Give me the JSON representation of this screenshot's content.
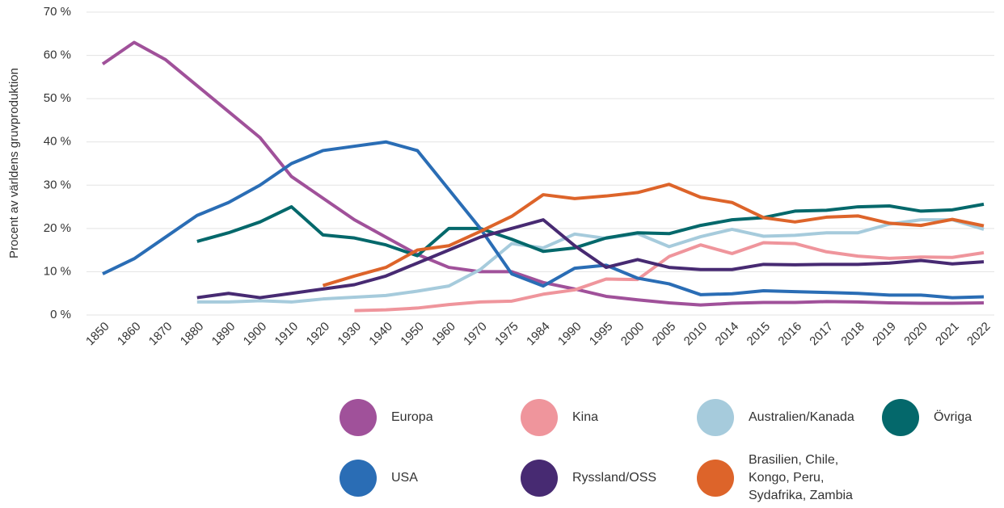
{
  "chart_data": {
    "type": "line",
    "ylabel": "Procent av världens gruvproduktion",
    "categories": [
      "1850",
      "1860",
      "1870",
      "1880",
      "1890",
      "1900",
      "1910",
      "1920",
      "1930",
      "1940",
      "1950",
      "1960",
      "1970",
      "1975",
      "1984",
      "1990",
      "1995",
      "2000",
      "2005",
      "2010",
      "2014",
      "2015",
      "2016",
      "2017",
      "2018",
      "2019",
      "2020",
      "2021",
      "2022"
    ],
    "ylim": [
      0,
      70
    ],
    "yticks": [
      {
        "value": 0,
        "label": "0 %"
      },
      {
        "value": 10,
        "label": "10 %"
      },
      {
        "value": 20,
        "label": "20 %"
      },
      {
        "value": 30,
        "label": "30 %"
      },
      {
        "value": 40,
        "label": "40 %"
      },
      {
        "value": 50,
        "label": "50 %"
      },
      {
        "value": 60,
        "label": "60 %"
      },
      {
        "value": 70,
        "label": "70 %"
      }
    ],
    "grid": true,
    "series": [
      {
        "name": "Europa",
        "color": "#a0519a",
        "values": [
          58,
          63,
          59,
          53,
          47,
          41,
          32,
          27,
          22,
          18,
          14,
          11,
          10,
          10,
          7.5,
          6,
          4.3,
          3.5,
          2.8,
          2.3,
          2.7,
          2.9,
          2.9,
          3.1,
          3,
          2.8,
          2.7,
          2.7,
          2.8
        ]
      },
      {
        "name": "Kina",
        "color": "#ef959c",
        "values": [
          null,
          null,
          null,
          null,
          null,
          null,
          null,
          null,
          1,
          1.2,
          1.6,
          2.4,
          3,
          3.2,
          4.8,
          5.8,
          8.3,
          8.2,
          13.5,
          16.2,
          14.2,
          16.7,
          16.5,
          14.6,
          13.6,
          13.1,
          13.4,
          13.3,
          14.4
        ]
      },
      {
        "name": "Australien/Kanada",
        "color": "#a6cbdc",
        "values": [
          null,
          null,
          null,
          3,
          3,
          3.3,
          3,
          3.7,
          4.1,
          4.5,
          5.5,
          6.7,
          10.5,
          16.5,
          15.5,
          18.7,
          17.7,
          18.8,
          15.8,
          18.1,
          19.8,
          18.2,
          18.4,
          19,
          19,
          21,
          22,
          22,
          19.8
        ]
      },
      {
        "name": "Övriga",
        "color": "#04686b",
        "values": [
          null,
          null,
          null,
          17,
          19,
          21.5,
          25,
          18.5,
          17.8,
          16.2,
          13.7,
          20,
          20,
          17.5,
          14.7,
          15.5,
          17.8,
          19,
          18.8,
          20.7,
          22,
          22.5,
          24,
          24.2,
          25,
          25.2,
          24,
          24.3,
          25.6
        ]
      },
      {
        "name": "USA",
        "color": "#2a6db5",
        "values": [
          9.5,
          13,
          18,
          23,
          26,
          30,
          35,
          38,
          39,
          40,
          38,
          29,
          20,
          9.5,
          6.7,
          10.8,
          11.5,
          8.5,
          7.2,
          4.7,
          4.9,
          5.6,
          5.4,
          5.2,
          5,
          4.6,
          4.6,
          4,
          4.2
        ]
      },
      {
        "name": "Ryssland/OSS",
        "color": "#472a72",
        "values": [
          null,
          null,
          null,
          4,
          5,
          4,
          5,
          6,
          7,
          9,
          12,
          15,
          18,
          20,
          22,
          16,
          11,
          12.8,
          11,
          10.5,
          10.5,
          11.7,
          11.6,
          11.7,
          11.7,
          12,
          12.6,
          11.8,
          12.3
        ]
      },
      {
        "name": "Brasilien, Chile, Kongo, Peru, Sydafrika, Zambia",
        "color": "#dd642a",
        "values": [
          null,
          null,
          null,
          null,
          null,
          null,
          null,
          6.8,
          9,
          11,
          15,
          16,
          19.3,
          22.8,
          27.8,
          26.9,
          27.5,
          28.3,
          30.2,
          27.2,
          26,
          22.5,
          21.5,
          22.6,
          22.9,
          21.2,
          20.7,
          22.1,
          20.6
        ]
      }
    ]
  }
}
